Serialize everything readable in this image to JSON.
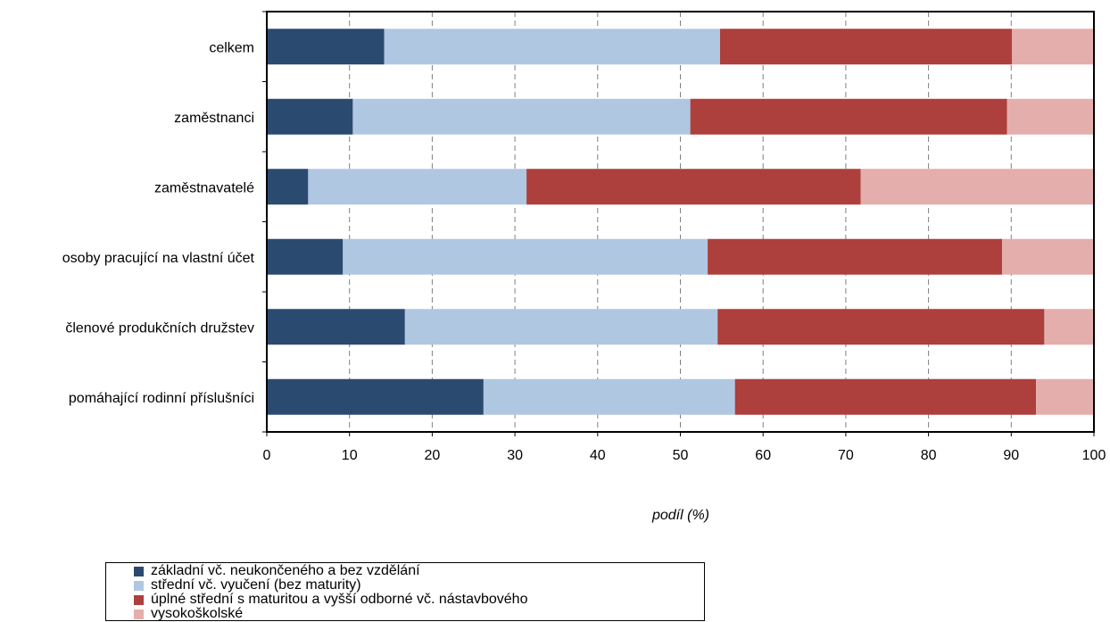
{
  "chart_data": {
    "type": "bar",
    "orientation": "horizontal",
    "stacked": true,
    "categories": [
      "celkem",
      "zaměstnanci",
      "zaměstnavatelé",
      "osoby pracující na vlastní účet",
      "členové produkčních družstev",
      "pomáhající rodinní příslušníci"
    ],
    "series": [
      {
        "name": "základní vč. neukončeného a bez vzdělání",
        "color": "#2b4a70",
        "values": [
          14.2,
          10.4,
          5.0,
          9.2,
          16.7,
          26.2
        ]
      },
      {
        "name": "střední vč. vyučení (bez maturity)",
        "color": "#b0c7e2",
        "values": [
          40.6,
          40.8,
          26.4,
          44.1,
          37.8,
          30.4
        ]
      },
      {
        "name": "úplné střední s maturitou a vyšší odborné vč. nástavbového",
        "color": "#ad3f3c",
        "values": [
          35.3,
          38.3,
          40.4,
          35.6,
          39.5,
          36.4
        ]
      },
      {
        "name": "vysokoškolské",
        "color": "#e4aeac",
        "values": [
          9.9,
          10.5,
          28.2,
          11.1,
          6.0,
          7.0
        ]
      }
    ],
    "xlabel": "podíl (%)",
    "ylabel": "",
    "xlim": [
      0,
      100
    ],
    "xticks": [
      0,
      10,
      20,
      30,
      40,
      50,
      60,
      70,
      80,
      90,
      100
    ],
    "grid": "vertical dashed",
    "legend_position": "bottom-left"
  }
}
